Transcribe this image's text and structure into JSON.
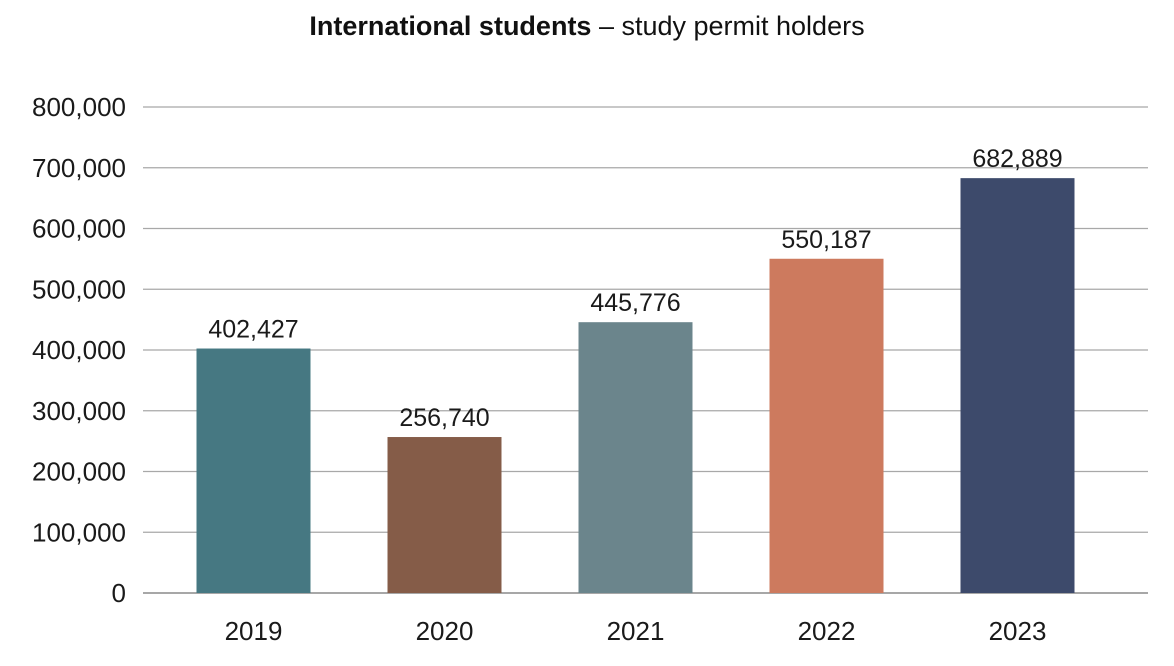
{
  "chart_data": {
    "type": "bar",
    "title_bold": "International students",
    "title_rest": " – study permit holders",
    "categories": [
      "2019",
      "2020",
      "2021",
      "2022",
      "2023"
    ],
    "values": [
      402427,
      256740,
      445776,
      550187,
      682889
    ],
    "value_labels": [
      "402,427",
      "256,740",
      "445,776",
      "550,187",
      "682,889"
    ],
    "colors": [
      "#467882",
      "#855c48",
      "#6b858c",
      "#cd7a5e",
      "#3d4a6b"
    ],
    "ylim": [
      0,
      800000
    ],
    "yticks": [
      0,
      100000,
      200000,
      300000,
      400000,
      500000,
      600000,
      700000,
      800000
    ],
    "ytick_labels": [
      "0",
      "100,000",
      "200,000",
      "300,000",
      "400,000",
      "500,000",
      "600,000",
      "700,000",
      "800,000"
    ],
    "grid": true,
    "xlabel": "",
    "ylabel": ""
  }
}
